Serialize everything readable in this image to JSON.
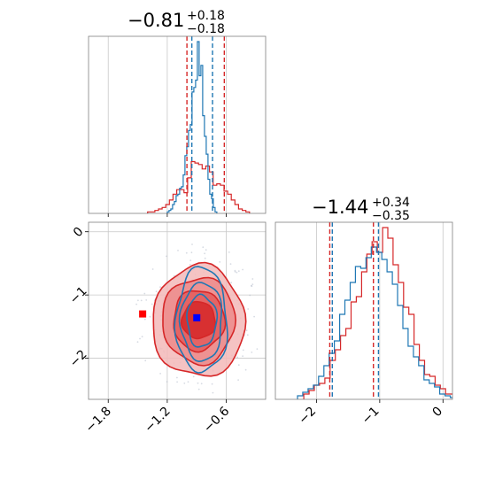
{
  "chart_data": {
    "type": "corner",
    "colors": {
      "red": "#d62728",
      "blue": "#1f77b4",
      "red_marker": "#ff0000",
      "blue_marker": "#0000ff",
      "grid": "#c8c8c8",
      "axes": "#7f7f7f"
    },
    "params": [
      {
        "title": {
          "main": "−0.81",
          "plus": "+0.18",
          "minus": "−0.18"
        },
        "range": [
          -2.0,
          -0.2
        ],
        "ticks": [
          -1.8,
          -1.2,
          -0.6
        ],
        "tick_labels": [
          "−1.8",
          "−1.2",
          "−0.6"
        ],
        "quantiles": {
          "red": [
            -1.0,
            -0.62
          ],
          "blue": [
            -0.95,
            -0.74
          ]
        },
        "hist_red": {
          "edges_start": -1.4,
          "bin": 0.037,
          "counts": [
            1,
            1,
            2,
            3,
            4,
            6,
            9,
            13,
            16,
            16,
            14,
            24,
            35,
            34,
            33,
            30,
            32,
            28,
            19,
            20,
            19,
            15,
            13,
            9,
            6,
            3,
            2,
            1
          ]
        },
        "hist_blue": {
          "edges_start": -1.2,
          "bin": 0.018,
          "counts": [
            1,
            2,
            3,
            6,
            8,
            12,
            13,
            17,
            18,
            26,
            39,
            45,
            56,
            60,
            82,
            85,
            90,
            116,
            93,
            100,
            66,
            52,
            40,
            23,
            13,
            10,
            4,
            1
          ]
        }
      },
      {
        "title": {
          "main": "−1.44",
          "plus": "+0.34",
          "minus": "−0.35"
        },
        "range": [
          -2.65,
          0.15
        ],
        "ticks": [
          -2,
          -1,
          0
        ],
        "tick_labels": [
          "−2",
          "−1",
          "0"
        ],
        "quantiles": {
          "red": [
            -1.79,
            -1.1
          ],
          "blue": [
            -1.75,
            -1.02
          ]
        },
        "hist_red": {
          "edges_start": -2.2,
          "bin": 0.083,
          "counts": [
            3,
            5,
            8,
            9,
            12,
            22,
            28,
            36,
            40,
            55,
            58,
            72,
            82,
            89,
            83,
            97,
            91,
            76,
            66,
            52,
            48,
            31,
            22,
            14,
            13,
            8,
            6,
            3,
            3,
            2
          ]
        },
        "hist_blue": {
          "edges_start": -2.3,
          "bin": 0.0833,
          "counts": [
            2,
            4,
            6,
            8,
            13,
            19,
            26,
            33,
            48,
            56,
            66,
            75,
            74,
            80,
            86,
            83,
            79,
            72,
            65,
            53,
            40,
            30,
            24,
            19,
            11,
            9,
            7,
            3,
            2,
            1,
            1
          ]
        }
      }
    ],
    "joint": {
      "x_ticks": [
        -1.8,
        -1.2,
        -0.6
      ],
      "y_ticks": [
        0,
        -1,
        -2
      ],
      "y_tick_labels": [
        "0",
        "−1",
        "−2"
      ],
      "x_range": [
        -2.0,
        -0.2
      ],
      "y_range": [
        -2.65,
        0.15
      ],
      "red_marker": {
        "x": -1.45,
        "y": -1.3
      },
      "blue_marker": {
        "x": -0.9,
        "y": -1.36
      },
      "red_contours": [
        {
          "cx": -0.88,
          "cy": -1.42,
          "rx": 0.47,
          "ry": 0.88
        },
        {
          "cx": -0.88,
          "cy": -1.4,
          "rx": 0.37,
          "ry": 0.68
        },
        {
          "cx": -0.88,
          "cy": -1.4,
          "rx": 0.26,
          "ry": 0.48
        },
        {
          "cx": -0.88,
          "cy": -1.4,
          "rx": 0.17,
          "ry": 0.29
        }
      ],
      "blue_contours": [
        {
          "cx": -0.85,
          "cy": -1.4,
          "rx": 0.26,
          "ry": 0.83
        },
        {
          "cx": -0.85,
          "cy": -1.42,
          "rx": 0.21,
          "ry": 0.62
        },
        {
          "cx": -0.85,
          "cy": -1.41,
          "rx": 0.15,
          "ry": 0.41
        }
      ]
    }
  }
}
